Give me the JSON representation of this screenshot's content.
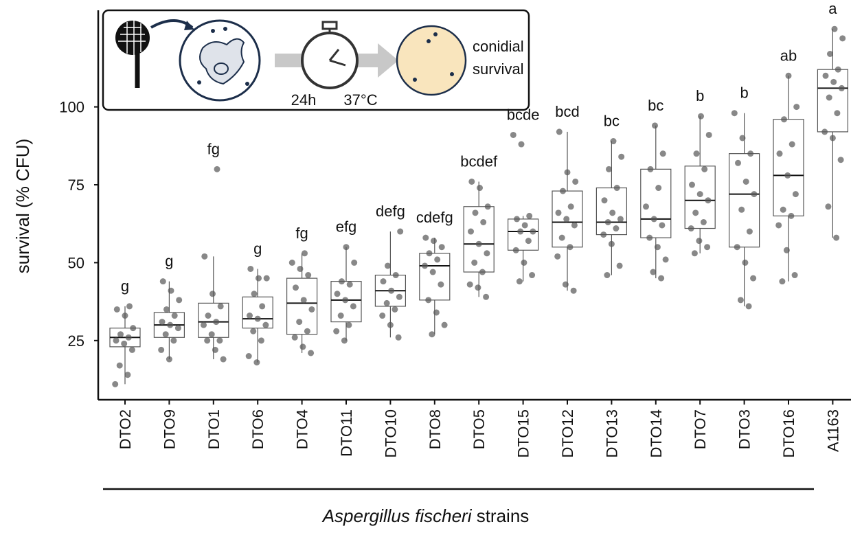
{
  "chart_data": {
    "type": "box",
    "ylabel": "survival (% CFU)",
    "xlabel_italic": "Aspergillus fischeri",
    "xlabel_rest": "strains",
    "categories": [
      "DTO2",
      "DTO9",
      "DTO1",
      "DTO6",
      "DTO4",
      "DTO11",
      "DTO10",
      "DTO8",
      "DTO5",
      "DTO15",
      "DTO12",
      "DTO13",
      "DTO14",
      "DTO7",
      "DTO3",
      "DTO16",
      "A1163"
    ],
    "letters": [
      "g",
      "g",
      "fg",
      "g",
      "fg",
      "efg",
      "defg",
      "cdefg",
      "bcdef",
      "bcde",
      "bcd",
      "bc",
      "bc",
      "b",
      "b",
      "ab",
      "a"
    ],
    "boxes": [
      {
        "low": 11,
        "q1": 23,
        "median": 26,
        "q3": 29,
        "high": 36
      },
      {
        "low": 19,
        "q1": 26,
        "median": 30,
        "q3": 34,
        "high": 44
      },
      {
        "low": 19,
        "q1": 26,
        "median": 31,
        "q3": 37,
        "high": 52
      },
      {
        "low": 18,
        "q1": 29,
        "median": 32,
        "q3": 39,
        "high": 48
      },
      {
        "low": 21,
        "q1": 27,
        "median": 37,
        "q3": 45,
        "high": 53
      },
      {
        "low": 25,
        "q1": 31,
        "median": 38,
        "q3": 44,
        "high": 55
      },
      {
        "low": 26,
        "q1": 36,
        "median": 41,
        "q3": 46,
        "high": 60
      },
      {
        "low": 27,
        "q1": 38,
        "median": 49,
        "q3": 53,
        "high": 58
      },
      {
        "low": 39,
        "q1": 47,
        "median": 56,
        "q3": 68,
        "high": 76
      },
      {
        "low": 44,
        "q1": 54,
        "median": 60,
        "q3": 64,
        "high": 65
      },
      {
        "low": 41,
        "q1": 55,
        "median": 63,
        "q3": 73,
        "high": 92
      },
      {
        "low": 46,
        "q1": 59,
        "median": 63,
        "q3": 74,
        "high": 89
      },
      {
        "low": 45,
        "q1": 58,
        "median": 64,
        "q3": 80,
        "high": 94
      },
      {
        "low": 53,
        "q1": 61,
        "median": 70,
        "q3": 81,
        "high": 97
      },
      {
        "low": 36,
        "q1": 55,
        "median": 72,
        "q3": 85,
        "high": 98
      },
      {
        "low": 44,
        "q1": 65,
        "median": 78,
        "q3": 96,
        "high": 110
      },
      {
        "low": 58,
        "q1": 92,
        "median": 106,
        "q3": 112,
        "high": 125
      }
    ],
    "points": [
      [
        11,
        14,
        17,
        22,
        24,
        25,
        26,
        27,
        29,
        33,
        35,
        36
      ],
      [
        19,
        22,
        25,
        27,
        29,
        30,
        31,
        33,
        35,
        38,
        41,
        44
      ],
      [
        19,
        22,
        25,
        25,
        27,
        30,
        31,
        33,
        36,
        40,
        52,
        80
      ],
      [
        18,
        20,
        25,
        28,
        30,
        32,
        33,
        36,
        40,
        45,
        45,
        48
      ],
      [
        21,
        23,
        26,
        28,
        31,
        35,
        38,
        42,
        46,
        48,
        50,
        53
      ],
      [
        25,
        28,
        30,
        33,
        36,
        38,
        40,
        43,
        44,
        50,
        55
      ],
      [
        26,
        30,
        33,
        35,
        37,
        39,
        41,
        44,
        46,
        49,
        60
      ],
      [
        27,
        30,
        34,
        38,
        43,
        47,
        49,
        51,
        53,
        55,
        57,
        58
      ],
      [
        39,
        42,
        43,
        47,
        50,
        53,
        56,
        60,
        63,
        66,
        68,
        74,
        76
      ],
      [
        44,
        46,
        50,
        54,
        57,
        60,
        60,
        62,
        64,
        65,
        88,
        91
      ],
      [
        41,
        43,
        52,
        55,
        58,
        62,
        64,
        66,
        68,
        73,
        76,
        79,
        92
      ],
      [
        46,
        49,
        56,
        59,
        61,
        63,
        64,
        66,
        70,
        74,
        80,
        84,
        89
      ],
      [
        45,
        47,
        51,
        55,
        58,
        62,
        64,
        68,
        74,
        80,
        85,
        94
      ],
      [
        53,
        55,
        57,
        61,
        63,
        66,
        70,
        72,
        75,
        80,
        85,
        91,
        97
      ],
      [
        36,
        38,
        45,
        50,
        55,
        60,
        67,
        72,
        76,
        82,
        85,
        90,
        98
      ],
      [
        44,
        46,
        54,
        62,
        65,
        67,
        72,
        78,
        85,
        88,
        96,
        100,
        110
      ],
      [
        58,
        68,
        83,
        90,
        92,
        98,
        103,
        106,
        108,
        110,
        112,
        117,
        122,
        125
      ]
    ],
    "point_color": "#555555",
    "ylim": [
      6,
      131
    ],
    "yticks": [
      25,
      50,
      75,
      100
    ]
  },
  "inset": {
    "time": "24h",
    "temperature": "37°C",
    "label_lines": [
      "conidial",
      "survival"
    ]
  }
}
